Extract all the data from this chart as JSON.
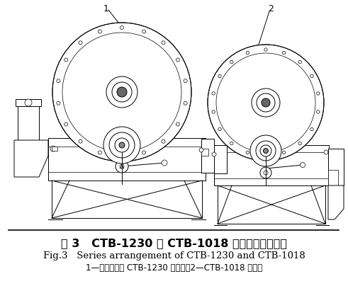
{
  "title_chinese": "图 3   CTB-1230 与 CTB-1018 磁选机串联配置图",
  "title_english": "Fig.3   Series arrangement of CTB-1230 and CTB-1018",
  "caption": "1—专门设计的 CTB-1230 磁选机；2—CTB-1018 磁选机",
  "bg_color": "#ffffff",
  "text_color": "#000000",
  "figure_width": 4.91,
  "figure_height": 4.04,
  "dpi": 100
}
